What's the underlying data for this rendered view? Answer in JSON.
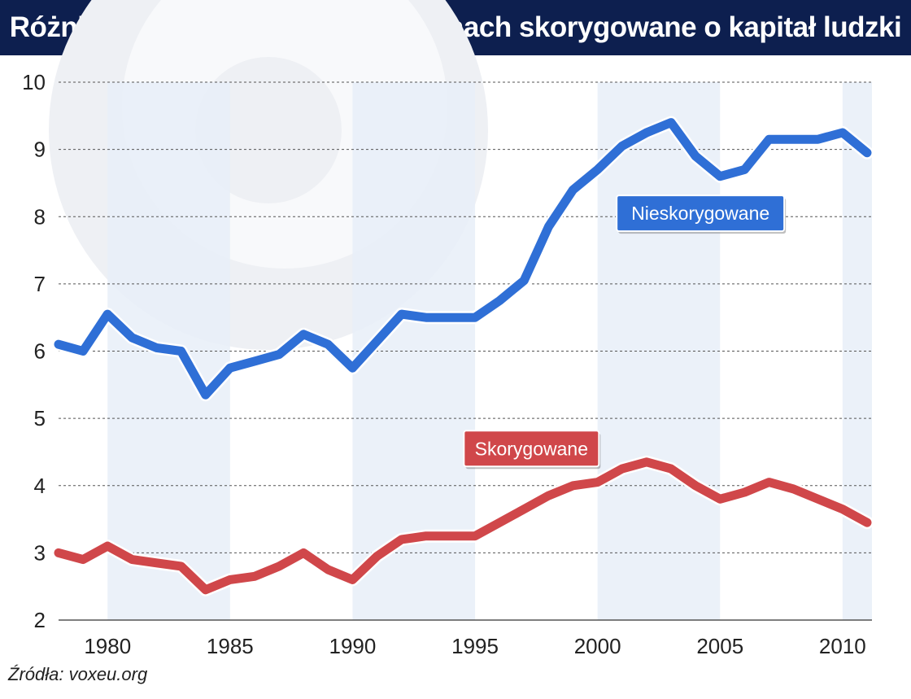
{
  "title": "Różnice w produktywności w Chinach skorygowane o kapitał ludzki",
  "source": "Źródła: voxeu.org",
  "colors": {
    "header_bg": "#0d1f4f",
    "series_blue": "#2f6fd6",
    "series_red": "#d0474a",
    "band": "#e8eef8",
    "watermark": "#eef0f4"
  },
  "chart_data": {
    "type": "line",
    "xlim": [
      1978,
      2011.2
    ],
    "ylim": [
      2,
      10
    ],
    "y_ticks": [
      "2",
      "3",
      "4",
      "5",
      "6",
      "7",
      "8",
      "9",
      "10"
    ],
    "x_ticks": [
      "1980",
      "1985",
      "1990",
      "1995",
      "2000",
      "2005",
      "2010"
    ],
    "grid": "horizontal dashed",
    "shaded_bands": [
      [
        1980,
        1985
      ],
      [
        1990,
        1995
      ],
      [
        2000,
        2005
      ],
      [
        2010,
        2011.2
      ]
    ],
    "series": [
      {
        "name": "Nieskorygowane",
        "color": "#2f6fd6",
        "x": [
          1978,
          1979,
          1980,
          1981,
          1982,
          1983,
          1984,
          1985,
          1986,
          1987,
          1988,
          1989,
          1990,
          1991,
          1992,
          1993,
          1994,
          1995,
          1996,
          1997,
          1998,
          1999,
          2000,
          2001,
          2002,
          2003,
          2004,
          2005,
          2006,
          2007,
          2008,
          2009,
          2010,
          2011
        ],
        "y": [
          6.1,
          6.0,
          6.55,
          6.2,
          6.05,
          6.0,
          5.35,
          5.75,
          5.85,
          5.95,
          6.25,
          6.1,
          5.75,
          6.15,
          6.55,
          6.5,
          6.5,
          6.5,
          6.75,
          7.05,
          7.85,
          8.4,
          8.7,
          9.05,
          9.25,
          9.4,
          8.9,
          8.6,
          8.7,
          9.15,
          9.15,
          9.15,
          9.25,
          8.95
        ]
      },
      {
        "name": "Skorygowane",
        "color": "#d0474a",
        "x": [
          1978,
          1979,
          1980,
          1981,
          1982,
          1983,
          1984,
          1985,
          1986,
          1987,
          1988,
          1989,
          1990,
          1991,
          1992,
          1993,
          1994,
          1995,
          1996,
          1997,
          1998,
          1999,
          2000,
          2001,
          2002,
          2003,
          2004,
          2005,
          2006,
          2007,
          2008,
          2009,
          2010,
          2011
        ],
        "y": [
          3.0,
          2.9,
          3.1,
          2.9,
          2.85,
          2.8,
          2.45,
          2.6,
          2.65,
          2.8,
          3.0,
          2.75,
          2.6,
          2.95,
          3.2,
          3.25,
          3.25,
          3.25,
          3.45,
          3.65,
          3.85,
          4.0,
          4.05,
          4.25,
          4.35,
          4.25,
          4.0,
          3.8,
          3.9,
          4.05,
          3.95,
          3.8,
          3.65,
          3.45
        ]
      }
    ]
  }
}
